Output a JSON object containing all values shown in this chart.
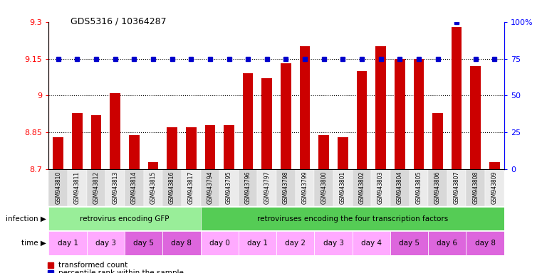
{
  "title": "GDS5316 / 10364287",
  "samples": [
    "GSM943810",
    "GSM943811",
    "GSM943812",
    "GSM943813",
    "GSM943814",
    "GSM943815",
    "GSM943816",
    "GSM943817",
    "GSM943794",
    "GSM943795",
    "GSM943796",
    "GSM943797",
    "GSM943798",
    "GSM943799",
    "GSM943800",
    "GSM943801",
    "GSM943802",
    "GSM943803",
    "GSM943804",
    "GSM943805",
    "GSM943806",
    "GSM943807",
    "GSM943808",
    "GSM943809"
  ],
  "bar_values": [
    8.83,
    8.93,
    8.92,
    9.01,
    8.84,
    8.73,
    8.87,
    8.87,
    8.88,
    8.88,
    9.09,
    9.07,
    9.13,
    9.2,
    8.84,
    8.83,
    9.1,
    9.2,
    9.15,
    9.15,
    8.93,
    9.28,
    9.12,
    8.73
  ],
  "percentile_values": [
    75,
    75,
    75,
    75,
    75,
    75,
    75,
    75,
    75,
    75,
    75,
    75,
    75,
    75,
    75,
    75,
    75,
    75,
    75,
    75,
    75,
    100,
    75,
    75
  ],
  "bar_color": "#cc0000",
  "percentile_color": "#0000cc",
  "ylim_left": [
    8.7,
    9.3
  ],
  "ylim_right": [
    0,
    100
  ],
  "yticks_left": [
    8.7,
    8.85,
    9.0,
    9.15,
    9.3
  ],
  "ytick_labels_left": [
    "8.7",
    "8.85",
    "9",
    "9.15",
    "9.3"
  ],
  "yticks_right": [
    0,
    25,
    50,
    75,
    100
  ],
  "ytick_labels_right": [
    "0",
    "25",
    "50",
    "75",
    "100%"
  ],
  "dotted_lines": [
    8.85,
    9.0,
    9.15
  ],
  "infection_groups": [
    {
      "label": "retrovirus encoding GFP",
      "start": 0,
      "end": 8,
      "color": "#99ee99"
    },
    {
      "label": "retroviruses encoding the four transcription factors",
      "start": 8,
      "end": 24,
      "color": "#55cc55"
    }
  ],
  "time_labels": [
    {
      "label": "day 1",
      "start": 0,
      "end": 2,
      "color": "#ffaaff"
    },
    {
      "label": "day 3",
      "start": 2,
      "end": 4,
      "color": "#ffaaff"
    },
    {
      "label": "day 5",
      "start": 4,
      "end": 6,
      "color": "#dd66dd"
    },
    {
      "label": "day 8",
      "start": 6,
      "end": 8,
      "color": "#dd66dd"
    },
    {
      "label": "day 0",
      "start": 8,
      "end": 10,
      "color": "#ffaaff"
    },
    {
      "label": "day 1",
      "start": 10,
      "end": 12,
      "color": "#ffaaff"
    },
    {
      "label": "day 2",
      "start": 12,
      "end": 14,
      "color": "#ffaaff"
    },
    {
      "label": "day 3",
      "start": 14,
      "end": 16,
      "color": "#ffaaff"
    },
    {
      "label": "day 4",
      "start": 16,
      "end": 18,
      "color": "#ffaaff"
    },
    {
      "label": "day 5",
      "start": 18,
      "end": 20,
      "color": "#dd66dd"
    },
    {
      "label": "day 6",
      "start": 20,
      "end": 22,
      "color": "#dd66dd"
    },
    {
      "label": "day 8",
      "start": 22,
      "end": 24,
      "color": "#dd66dd"
    }
  ],
  "legend_items": [
    {
      "label": "transformed count",
      "color": "#cc0000"
    },
    {
      "label": "percentile rank within the sample",
      "color": "#0000cc"
    }
  ],
  "background_color": "#ffffff"
}
